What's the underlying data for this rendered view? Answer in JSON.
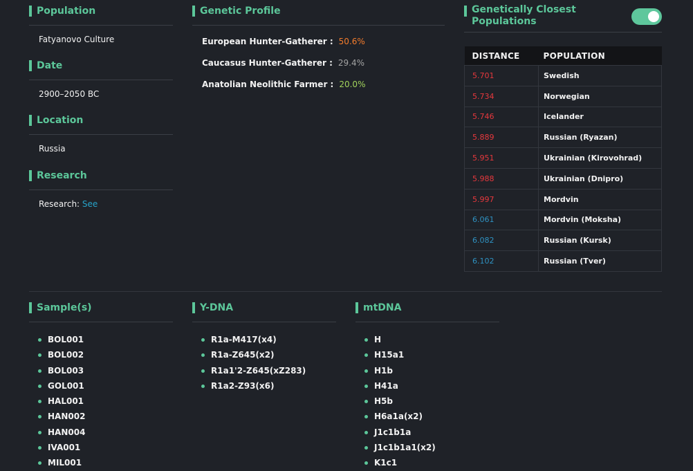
{
  "profile": {
    "population": {
      "title": "Population",
      "value": "Fatyanovo Culture"
    },
    "date": {
      "title": "Date",
      "value": "2900–2050 BC"
    },
    "location": {
      "title": "Location",
      "value": "Russia"
    },
    "research": {
      "title": "Research",
      "label": "Research:",
      "link": "See"
    }
  },
  "genetic_profile": {
    "title": "Genetic Profile",
    "components": [
      {
        "name": "European Hunter-Gatherer :",
        "value": "50.6%",
        "color": "#f47c2c"
      },
      {
        "name": "Caucasus Hunter-Gatherer :",
        "value": "29.4%",
        "color": "#a3a3a3"
      },
      {
        "name": "Anatolian Neolithic Farmer :",
        "value": "20.0%",
        "color": "#a2d35c"
      }
    ]
  },
  "closest": {
    "title": "Genetically Closest Populations",
    "columns": [
      "DISTANCE",
      "POPULATION"
    ],
    "rows": [
      {
        "distance": "5.701",
        "population": "Swedish",
        "color": "#e8383d"
      },
      {
        "distance": "5.734",
        "population": "Norwegian",
        "color": "#e8383d"
      },
      {
        "distance": "5.746",
        "population": "Icelander",
        "color": "#e8383d"
      },
      {
        "distance": "5.889",
        "population": "Russian (Ryazan)",
        "color": "#e8383d"
      },
      {
        "distance": "5.951",
        "population": "Ukrainian (Kirovohrad)",
        "color": "#e8383d"
      },
      {
        "distance": "5.988",
        "population": "Ukrainian (Dnipro)",
        "color": "#e8383d"
      },
      {
        "distance": "5.997",
        "population": "Mordvin",
        "color": "#e8383d"
      },
      {
        "distance": "6.061",
        "population": "Mordvin (Moksha)",
        "color": "#2f92c2"
      },
      {
        "distance": "6.082",
        "population": "Russian (Kursk)",
        "color": "#2f92c2"
      },
      {
        "distance": "6.102",
        "population": "Russian (Tver)",
        "color": "#2f92c2"
      }
    ]
  },
  "samples": {
    "title": "Sample(s)",
    "items": [
      "BOL001",
      "BOL002",
      "BOL003",
      "GOL001",
      "HAL001",
      "HAN002",
      "HAN004",
      "IVA001",
      "MIL001"
    ]
  },
  "ydna": {
    "title": "Y-DNA",
    "items": [
      "R1a-M417(x4)",
      "R1a-Z645(x2)",
      "R1a1'2-Z645(xZ283)",
      "R1a2-Z93(x6)"
    ]
  },
  "mtdna": {
    "title": "mtDNA",
    "items": [
      "H",
      "H15a1",
      "H1b",
      "H41a",
      "H5b",
      "H6a1a(x2)",
      "J1c1b1a",
      "J1c1b1a1(x2)",
      "K1c1"
    ]
  }
}
